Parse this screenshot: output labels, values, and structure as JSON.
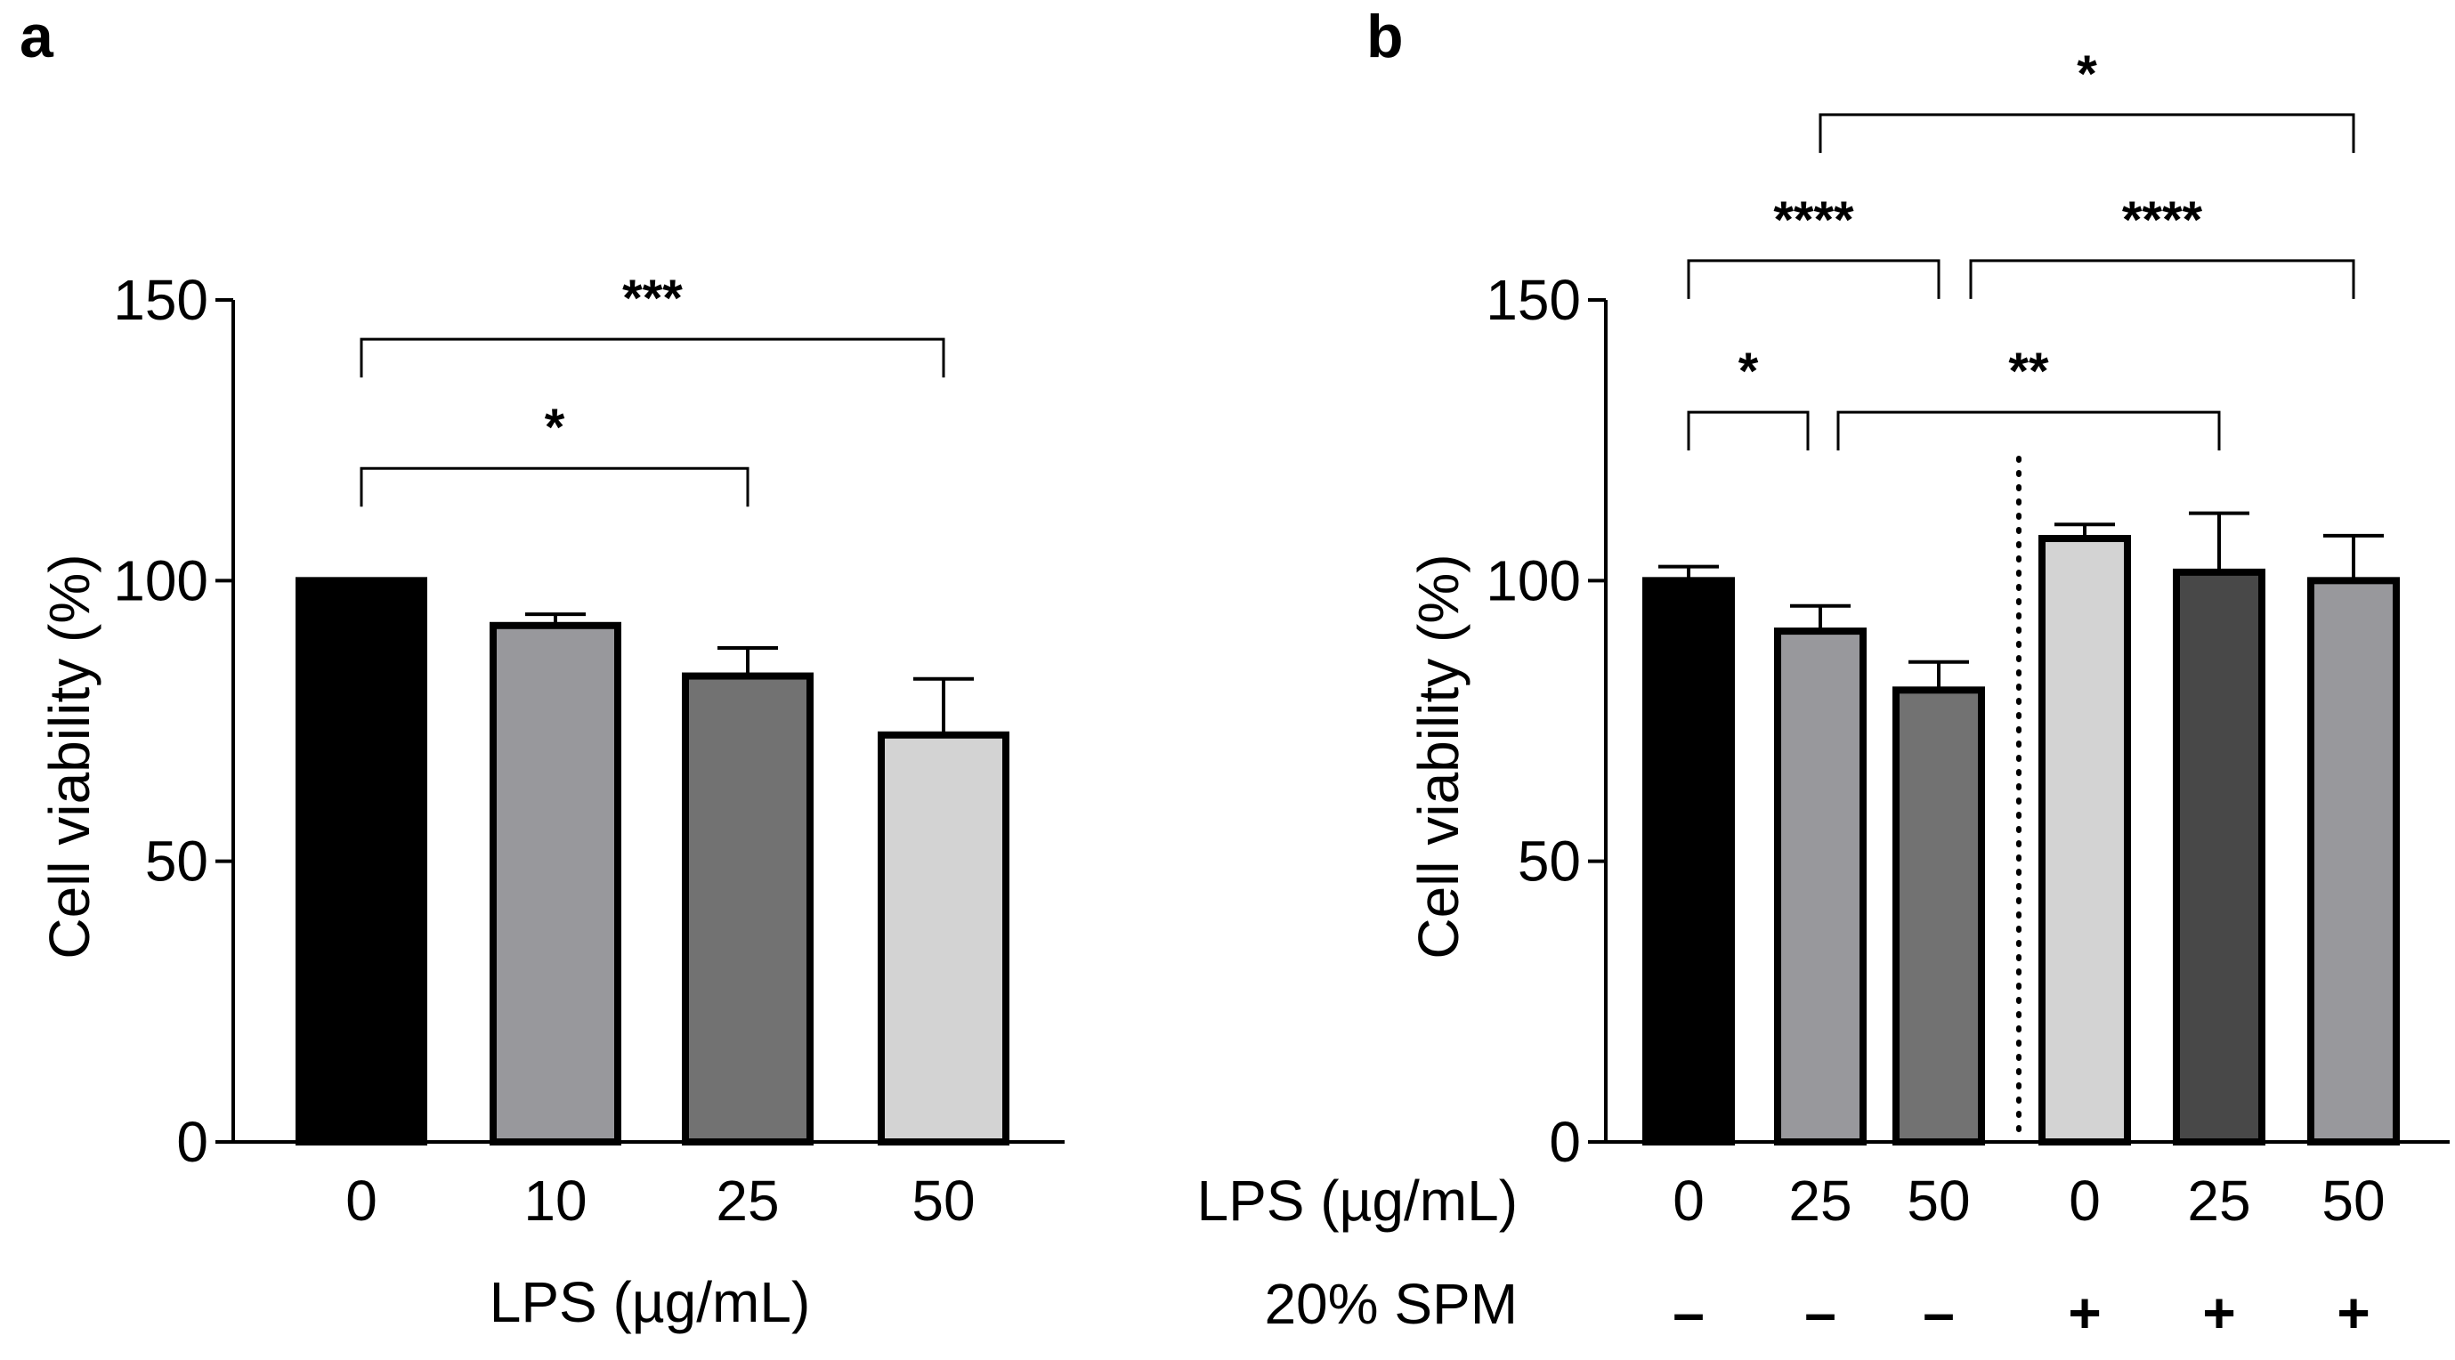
{
  "chart_data": [
    {
      "panel": "a",
      "type": "bar",
      "ylabel": "Cell viability (%)",
      "xlabel": "LPS (µg/mL)",
      "ylim": [
        0,
        150
      ],
      "yticks": [
        0,
        50,
        100,
        150
      ],
      "categories": [
        "0",
        "10",
        "25",
        "50"
      ],
      "values": [
        100,
        92,
        83,
        72.5
      ],
      "errors": [
        0,
        2,
        5,
        10
      ],
      "colors": [
        "#000000",
        "#98989c",
        "#727272",
        "#d3d3d3"
      ],
      "significance": [
        {
          "from": 0,
          "to": 2,
          "label": "*",
          "y": 120
        },
        {
          "from": 0,
          "to": 3,
          "label": "***",
          "y": 143
        }
      ]
    },
    {
      "panel": "b",
      "type": "bar",
      "ylabel": "Cell viability (%)",
      "ylim": [
        0,
        150
      ],
      "yticks": [
        0,
        50,
        100,
        150
      ],
      "row_labels": {
        "lps": "LPS (µg/mL)",
        "spm": "20% SPM"
      },
      "categories": [
        "0",
        "25",
        "50",
        "0",
        "25",
        "50"
      ],
      "spm": [
        "–",
        "–",
        "–",
        "+",
        "+",
        "+"
      ],
      "values": [
        100,
        91,
        80.5,
        107.5,
        101.5,
        100
      ],
      "errors": [
        2.5,
        4.5,
        5,
        2.5,
        10.5,
        8
      ],
      "colors": [
        "#000000",
        "#98989c",
        "#727272",
        "#d3d3d3",
        "#484848",
        "#98989c"
      ],
      "significance": [
        {
          "from": 0,
          "to": 1,
          "label": "*",
          "y": 130
        },
        {
          "from": 1,
          "to": 4,
          "label": "**",
          "y": 130
        },
        {
          "from": 0,
          "to": 2,
          "label": "****",
          "y": 157
        },
        {
          "from": 2,
          "to": 5,
          "label": "****",
          "y": 157
        },
        {
          "from": 1,
          "to": 5,
          "label": "*",
          "y": 183
        }
      ]
    }
  ]
}
